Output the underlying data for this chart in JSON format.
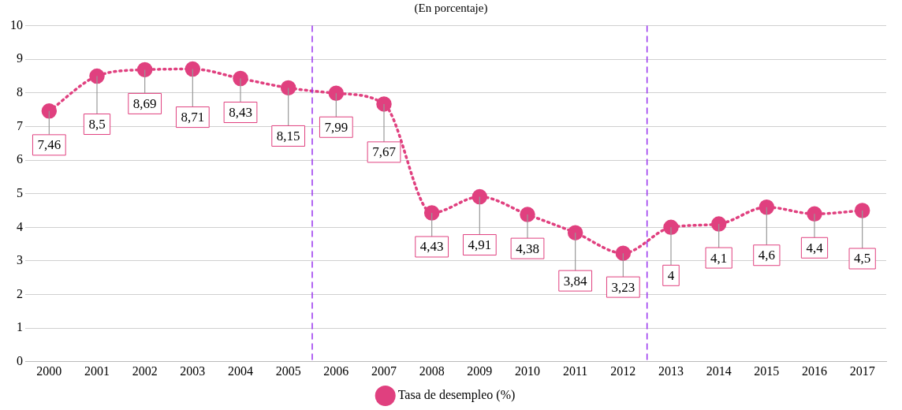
{
  "chart_data": {
    "type": "line",
    "subtitle": "(En porcentaje)",
    "x": [
      2000,
      2001,
      2002,
      2003,
      2004,
      2005,
      2006,
      2007,
      2008,
      2009,
      2010,
      2011,
      2012,
      2013,
      2014,
      2015,
      2016,
      2017
    ],
    "xlim": [
      1999.5,
      2017.5
    ],
    "xticks": [
      2000,
      2001,
      2002,
      2003,
      2004,
      2005,
      2006,
      2007,
      2008,
      2009,
      2010,
      2011,
      2012,
      2013,
      2014,
      2015,
      2016,
      2017
    ],
    "ylim": [
      0,
      10
    ],
    "yticks": [
      0,
      1,
      2,
      3,
      4,
      5,
      6,
      7,
      8,
      9,
      10
    ],
    "series": [
      {
        "name": "Tasa de desempleo (%)",
        "color": "#e0407f",
        "values": [
          7.46,
          8.5,
          8.69,
          8.71,
          8.43,
          8.15,
          7.99,
          7.67,
          4.43,
          4.91,
          4.38,
          3.84,
          3.23,
          4,
          4.1,
          4.6,
          4.4,
          4.5
        ],
        "value_labels": [
          "7,46",
          "8,5",
          "8,69",
          "8,71",
          "8,43",
          "8,15",
          "7,99",
          "7,67",
          "4,43",
          "4,91",
          "4,38",
          "3,84",
          "3,23",
          "4",
          "4,1",
          "4,6",
          "4,4",
          "4,5"
        ]
      }
    ],
    "ref_lines": [
      {
        "axis": "x",
        "value": 2005.5,
        "color": "#9933ee",
        "line_style": "dashed"
      },
      {
        "axis": "x",
        "value": 2012.5,
        "color": "#9933ee",
        "line_style": "dashed"
      }
    ],
    "grid": "y",
    "legend": "bottom",
    "marker": "circle",
    "line_style": "dotted"
  }
}
